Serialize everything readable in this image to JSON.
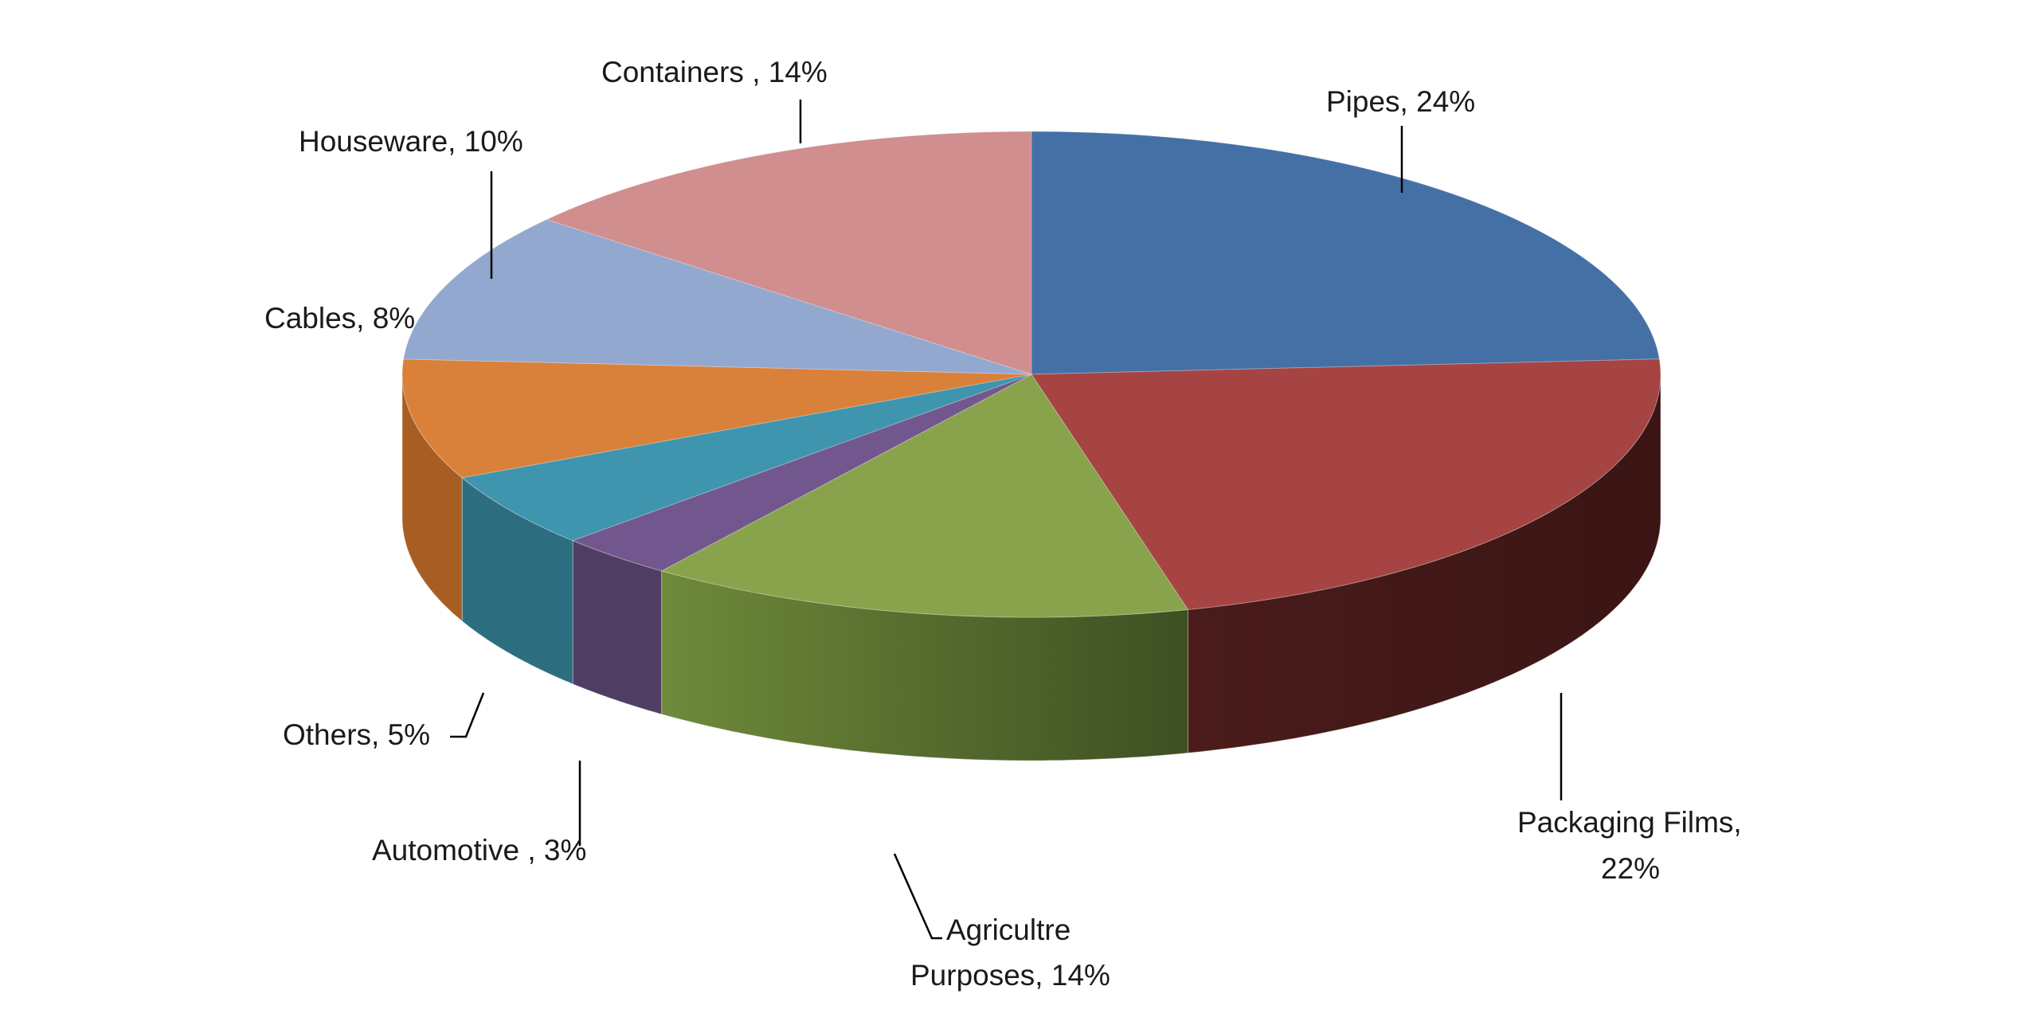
{
  "chart_data": {
    "type": "pie",
    "style": "3d-exploded-none",
    "slices": [
      {
        "label_lines": [
          "Pipes, 24%"
        ],
        "value": 24,
        "color": "#4470A6",
        "side_color": "#2E4E75"
      },
      {
        "label_lines": [
          "Packaging Films,",
          "22%"
        ],
        "value": 22,
        "color": "#A54442",
        "side_color": "#471C1B"
      },
      {
        "label_lines": [
          "Agricultre",
          "Purposes, 14%"
        ],
        "value": 14,
        "color": "#89A34C",
        "side_color": "#5A7233"
      },
      {
        "label_lines": [
          "Automotive , 3%"
        ],
        "value": 3,
        "color": "#72578E",
        "side_color": "#4F3D63"
      },
      {
        "label_lines": [
          "Others, 5%"
        ],
        "value": 5,
        "color": "#3F95AD",
        "side_color": "#2D6D80"
      },
      {
        "label_lines": [
          "Cables, 8%"
        ],
        "value": 8,
        "color": "#D9803A",
        "side_color": "#A85E23"
      },
      {
        "label_lines": [
          "Houseware, 10%"
        ],
        "value": 10,
        "color": "#93A8CF",
        "side_color": "#6F82A6"
      },
      {
        "label_lines": [
          "Containers , 14%"
        ],
        "value": 14,
        "color": "#D08E8E",
        "side_color": "#A56A6A"
      }
    ],
    "legend": "none",
    "title": ""
  }
}
